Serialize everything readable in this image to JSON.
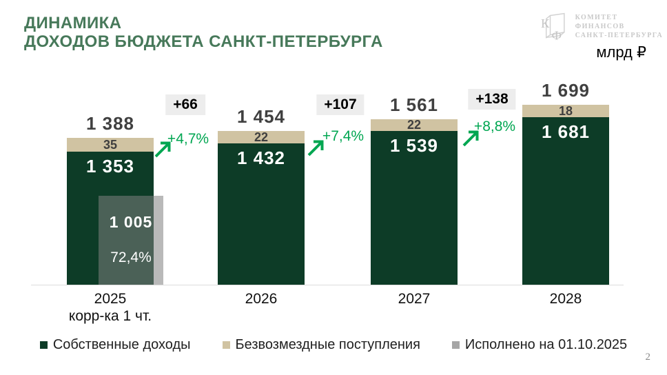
{
  "header": {
    "title_line1": "ДИНАМИКА",
    "title_line2": "ДОХОДОВ БЮДЖЕТА САНКТ-ПЕТЕРБУРГА",
    "units_label": "млрд ₽",
    "logo": {
      "monogram_top": "К",
      "monogram_bottom": "Ф",
      "org_line1": "КОМИТЕТ ФИНАНСОВ",
      "org_line2": "САНКТ-ПЕТЕРБУРГА"
    }
  },
  "footer": {
    "page_number": "2"
  },
  "colors": {
    "own_income": "#0d3c27",
    "grants": "#d0c3a2",
    "executed_gray": "#a6a6a6",
    "accent_green": "#00a651",
    "title_green": "#47795a",
    "total_label_gray": "#404040",
    "badge_bg": "#ededed"
  },
  "chart_data": {
    "type": "bar",
    "stacked": true,
    "unit": "млрд ₽",
    "title": "ДИНАМИКА ДОХОДОВ БЮДЖЕТА САНКТ-ПЕТЕРБУРГА",
    "grid": false,
    "legend_position": "bottom",
    "ylim": [
      0,
      1750
    ],
    "categories": [
      {
        "line1": "2025",
        "line2": "корр-ка 1 чт."
      },
      {
        "line1": "2026",
        "line2": ""
      },
      {
        "line1": "2027",
        "line2": ""
      },
      {
        "line1": "2028",
        "line2": ""
      }
    ],
    "series": [
      {
        "name": "Собственные доходы",
        "color": "#0d3c27",
        "values": [
          1353,
          1432,
          1539,
          1681
        ],
        "labels": [
          "1 353",
          "1 432",
          "1 539",
          "1 681"
        ]
      },
      {
        "name": "Безвозмездные поступления",
        "color": "#d0c3a2",
        "values": [
          35,
          22,
          22,
          18
        ],
        "labels": [
          "35",
          "22",
          "22",
          "18"
        ]
      },
      {
        "name": "Исполнено на 01.10.2025",
        "color": "#a6a6a6",
        "values": [
          1005,
          null,
          null,
          null
        ],
        "labels": [
          "1 005",
          null,
          null,
          null
        ]
      }
    ],
    "totals": {
      "values": [
        1388,
        1454,
        1561,
        1699
      ],
      "labels": [
        "1 388",
        "1 454",
        "1 561",
        "1 699"
      ]
    },
    "growth": [
      {
        "delta": "+66",
        "percent": "+4,7%"
      },
      {
        "delta": "+107",
        "percent": "+7,4%"
      },
      {
        "delta": "+138",
        "percent": "+8,8%"
      }
    ],
    "executed_overlay": {
      "value": 1005,
      "label": "1 005",
      "percent": "72,4%"
    }
  }
}
